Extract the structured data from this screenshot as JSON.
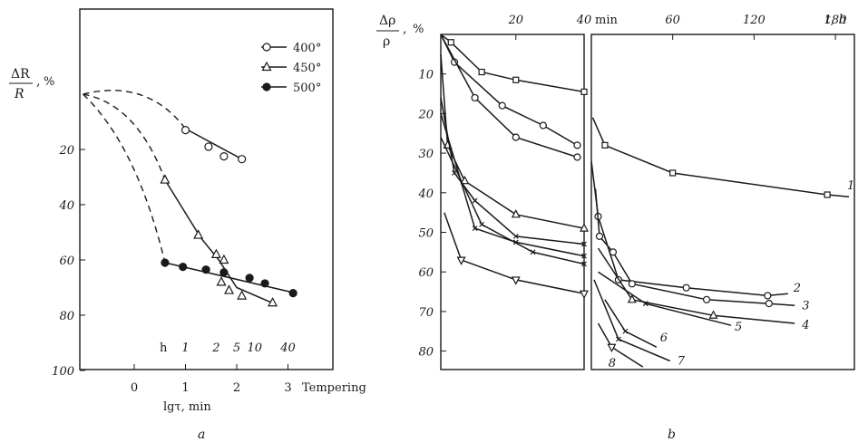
{
  "chart_data": [
    {
      "panel_label": "a",
      "type": "line",
      "y_label_numerator": "ΔR",
      "y_label_denominator": "R",
      "y_label_unit": "%",
      "x_label": "lgτ, min",
      "x_ticks": [
        "0",
        "1",
        "2",
        "3"
      ],
      "x_extra_label": "Tempering",
      "y_ticks": [
        "20",
        "40",
        "60",
        "80",
        "100"
      ],
      "xlim": [
        -1.0,
        3.5
      ],
      "ylim": [
        0,
        100
      ],
      "y_inverted": true,
      "hours_label": "h",
      "hours_ticks": [
        {
          "label": "1",
          "x": 1.0
        },
        {
          "label": "2",
          "x": 1.6
        },
        {
          "label": "5",
          "x": 2.0
        },
        {
          "label": "10",
          "x": 2.35
        },
        {
          "label": "40",
          "x": 3.0
        }
      ],
      "series": [
        {
          "name": "400°",
          "marker": "circle-open",
          "x": [
            1.0,
            1.45,
            1.75,
            2.1
          ],
          "y": [
            13,
            19,
            22.5,
            23.5
          ],
          "dashed_from": [
            -1.0,
            0
          ],
          "fit_x": [
            1.0,
            2.15
          ],
          "fit_y": [
            12.5,
            24
          ]
        },
        {
          "name": "450°",
          "marker": "triangle-open",
          "x": [
            0.6,
            1.25,
            1.6,
            1.75,
            1.7,
            1.85,
            2.1,
            2.7
          ],
          "y": [
            31,
            51,
            58,
            60,
            68,
            71,
            73,
            75.5
          ],
          "dashed_from": [
            -1.0,
            0
          ],
          "fit_x": [
            0.6,
            1.3,
            1.65,
            2.0,
            2.75
          ],
          "fit_y": [
            31,
            52,
            60,
            70,
            76
          ]
        },
        {
          "name": "500°",
          "marker": "circle-filled",
          "x": [
            0.6,
            0.95,
            1.4,
            1.75,
            2.25,
            2.55,
            3.1
          ],
          "y": [
            61,
            62.5,
            63.5,
            64.5,
            66.5,
            68.5,
            72
          ],
          "dashed_from": [
            -1.0,
            0
          ],
          "fit_x": [
            0.6,
            3.15
          ],
          "fit_y": [
            61,
            72
          ]
        }
      ]
    },
    {
      "panel_label": "b",
      "type": "line",
      "y_label_numerator": "Δρ",
      "y_label_denominator": "ρ",
      "y_label_unit": "%",
      "y_ticks": [
        "10",
        "20",
        "30",
        "40",
        "50",
        "60",
        "70",
        "80"
      ],
      "ylim": [
        0,
        85
      ],
      "y_inverted": true,
      "left_x_ticks": [
        "20",
        "40"
      ],
      "left_x_unit": "min",
      "left_xlim": [
        -2.0,
        40.0
      ],
      "right_x_ticks": [
        "60",
        "120",
        "180"
      ],
      "right_x_unit": "t, h",
      "right_xlim": [
        0,
        194
      ],
      "series": [
        {
          "name": "1",
          "marker": "square",
          "left_x": [
            -2.0,
            1.0,
            10.0,
            20.0,
            40.0
          ],
          "left_y": [
            0,
            2,
            9.5,
            11.5,
            14.5
          ],
          "right_x": [
            1.0,
            10.0,
            60.0,
            174.0,
            190.0
          ],
          "right_y": [
            21,
            28,
            35,
            40.5,
            41
          ]
        },
        {
          "name": "2",
          "marker": "circle",
          "left_x": [
            -2.0,
            2.0,
            16.0,
            28.0,
            38.0
          ],
          "left_y": [
            0,
            7,
            18,
            23,
            28
          ],
          "right_x": [
            0.0,
            5.0,
            20.0,
            70.0,
            130.0,
            145.0
          ],
          "right_y": [
            32,
            46,
            62,
            64,
            66,
            65.5
          ]
        },
        {
          "name": "3",
          "marker": "circle",
          "left_x": [
            -2.0,
            8.0,
            20.0,
            38.0
          ],
          "left_y": [
            0,
            16,
            26,
            31
          ],
          "right_x": [
            3.0,
            6.0,
            16.0,
            30.0,
            85.0,
            131.0,
            150.0
          ],
          "right_y": [
            39,
            51,
            55,
            63,
            67,
            68,
            68.5
          ]
        },
        {
          "name": "4",
          "marker": "triangle",
          "left_x": [
            -2.0,
            0.0,
            5.0,
            20.0,
            40.0
          ],
          "left_y": [
            5,
            28,
            37,
            45.5,
            49
          ],
          "right_x": [
            5.0,
            30.0,
            90.0,
            150.0
          ],
          "right_y": [
            54,
            67,
            71,
            73
          ]
        },
        {
          "name": "5",
          "marker": "cross",
          "left_x": [
            -2.0,
            2.0,
            8.0,
            20.0,
            40.0
          ],
          "left_y": [
            16,
            35,
            42,
            51,
            53
          ],
          "right_x": [
            5.0,
            40.0,
            103.0
          ],
          "right_y": [
            60,
            68,
            73.5
          ]
        },
        {
          "name": "6",
          "marker": "cross",
          "left_x": [
            -2.0,
            8.0,
            20.0,
            40.0
          ],
          "left_y": [
            20,
            49,
            52.5,
            56
          ],
          "right_x": [
            10.0,
            25.0,
            48.0
          ],
          "right_y": [
            67,
            75,
            79
          ]
        },
        {
          "name": "7",
          "marker": "cross",
          "left_x": [
            -2.0,
            10.0,
            25.0,
            40.0
          ],
          "left_y": [
            26,
            48,
            55,
            58
          ],
          "right_x": [
            2.0,
            20.0,
            58.0
          ],
          "right_y": [
            62,
            77,
            82.5
          ]
        },
        {
          "name": "8",
          "marker": "triangle-down",
          "left_x": [
            -1.0,
            4.0,
            20.0,
            40.0
          ],
          "left_y": [
            45,
            57,
            62,
            65.5
          ],
          "right_x": [
            5.0,
            15.0,
            38.0
          ],
          "right_y": [
            73,
            79,
            84
          ]
        }
      ]
    }
  ]
}
